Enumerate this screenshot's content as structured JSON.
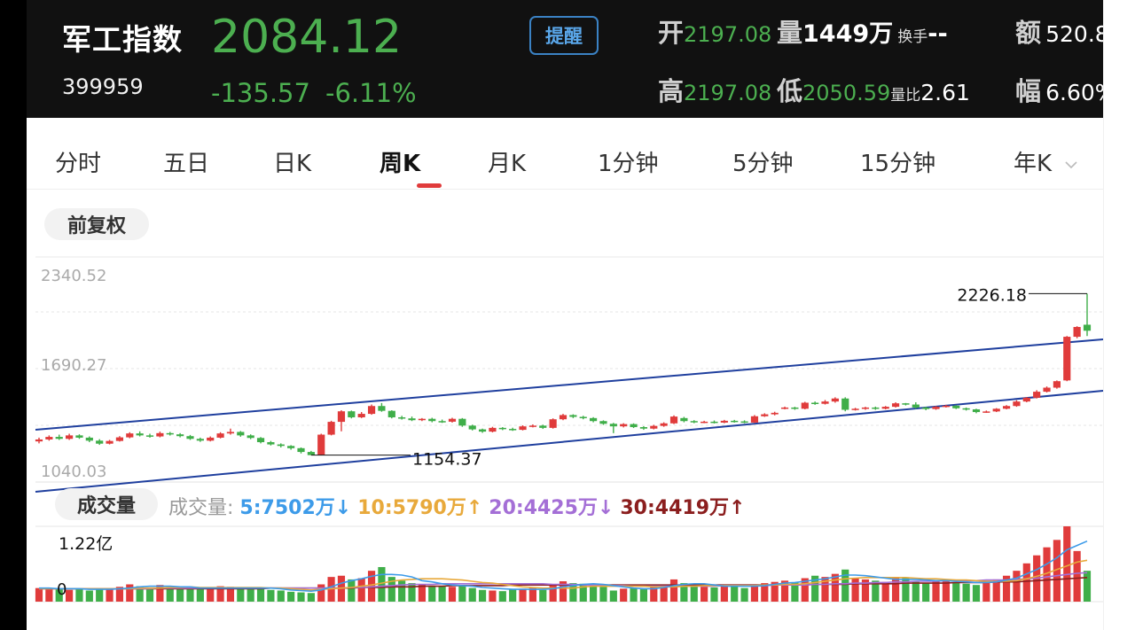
{
  "header": {
    "title": "军工指数",
    "code": "399959",
    "price": "2084.12",
    "change": "-135.57",
    "change_pct": "-6.11%",
    "alert_label": "提醒",
    "open_label": "开",
    "open": "2197.08",
    "volume_label": "量",
    "volume": "1449万",
    "turnover_label": "换手",
    "turnover": "--",
    "amount_label": "额",
    "amount": "520.8",
    "high_label": "高",
    "high": "2197.08",
    "low_label": "低",
    "low": "2050.59",
    "volratio_label": "量比",
    "volratio": "2.61",
    "amplitude_label": "幅",
    "amplitude": "6.60%"
  },
  "tabs": [
    {
      "label": "分时"
    },
    {
      "label": "五日"
    },
    {
      "label": "日K"
    },
    {
      "label": "周K",
      "active": true
    },
    {
      "label": "月K"
    },
    {
      "label": "1分钟"
    },
    {
      "label": "5分钟"
    },
    {
      "label": "15分钟"
    },
    {
      "label": "年K"
    }
  ],
  "adjust_label": "前复权",
  "volume_section": {
    "label": "成交量",
    "legend_prefix": "成交量:",
    "ma5": "5:7502万↓",
    "ma10": "10:5790万↑",
    "ma20": "20:4425万↓",
    "ma30": "30:4419万↑",
    "max_label": "1.22亿",
    "zero_label": "0"
  },
  "colors": {
    "up": "#e03b3b",
    "down": "#3fae49",
    "trend": "#1f3f9e",
    "ma5": "#3d9be9",
    "ma10": "#e8a93b",
    "ma20": "#a46fd6",
    "ma30": "#8b1e1e"
  },
  "chart_data": {
    "type": "candlestick",
    "y_axis_labels": [
      "2340.52",
      "1690.27",
      "1040.03"
    ],
    "ylim": [
      1040.03,
      2340.52
    ],
    "max_label": "2226.18",
    "min_label": "1154.37",
    "candles": [
      [
        1245,
        1258,
        1232,
        1270
      ],
      [
        1258,
        1275,
        1250,
        1285
      ],
      [
        1275,
        1262,
        1255,
        1290
      ],
      [
        1262,
        1285,
        1255,
        1296
      ],
      [
        1285,
        1270,
        1262,
        1292
      ],
      [
        1270,
        1250,
        1240,
        1278
      ],
      [
        1250,
        1230,
        1222,
        1260
      ],
      [
        1230,
        1248,
        1225,
        1255
      ],
      [
        1248,
        1272,
        1244,
        1280
      ],
      [
        1272,
        1298,
        1266,
        1306
      ],
      [
        1298,
        1285,
        1278,
        1312
      ],
      [
        1285,
        1278,
        1270,
        1296
      ],
      [
        1278,
        1300,
        1272,
        1310
      ],
      [
        1300,
        1292,
        1284,
        1308
      ],
      [
        1292,
        1280,
        1272,
        1300
      ],
      [
        1280,
        1262,
        1255,
        1288
      ],
      [
        1262,
        1250,
        1242,
        1270
      ],
      [
        1250,
        1270,
        1245,
        1278
      ],
      [
        1270,
        1298,
        1265,
        1306
      ],
      [
        1298,
        1308,
        1290,
        1330
      ],
      [
        1308,
        1285,
        1276,
        1314
      ],
      [
        1285,
        1268,
        1260,
        1292
      ],
      [
        1268,
        1240,
        1232,
        1274
      ],
      [
        1240,
        1225,
        1218,
        1248
      ],
      [
        1225,
        1215,
        1205,
        1232
      ],
      [
        1215,
        1200,
        1190,
        1220
      ],
      [
        1200,
        1175,
        1165,
        1205
      ],
      [
        1175,
        1154,
        1154,
        1182
      ],
      [
        1156,
        1290,
        1154,
        1296
      ],
      [
        1290,
        1375,
        1285,
        1382
      ],
      [
        1375,
        1445,
        1312,
        1452
      ],
      [
        1445,
        1405,
        1398,
        1450
      ],
      [
        1405,
        1428,
        1400,
        1440
      ],
      [
        1428,
        1480,
        1422,
        1490
      ],
      [
        1480,
        1448,
        1442,
        1500
      ],
      [
        1448,
        1405,
        1398,
        1452
      ],
      [
        1405,
        1398,
        1390,
        1415
      ],
      [
        1398,
        1386,
        1380,
        1410
      ],
      [
        1386,
        1395,
        1380,
        1400
      ],
      [
        1395,
        1380,
        1372,
        1402
      ],
      [
        1380,
        1376,
        1368,
        1390
      ],
      [
        1376,
        1395,
        1370,
        1402
      ],
      [
        1395,
        1350,
        1342,
        1400
      ],
      [
        1350,
        1325,
        1318,
        1356
      ],
      [
        1325,
        1310,
        1302,
        1330
      ],
      [
        1310,
        1335,
        1305,
        1342
      ],
      [
        1335,
        1328,
        1320,
        1340
      ],
      [
        1328,
        1322,
        1315,
        1336
      ],
      [
        1322,
        1345,
        1318,
        1352
      ],
      [
        1345,
        1350,
        1338,
        1358
      ],
      [
        1350,
        1335,
        1328,
        1356
      ],
      [
        1335,
        1392,
        1330,
        1398
      ],
      [
        1392,
        1420,
        1386,
        1428
      ],
      [
        1420,
        1408,
        1400,
        1425
      ],
      [
        1408,
        1400,
        1392,
        1415
      ],
      [
        1400,
        1380,
        1372,
        1406
      ],
      [
        1380,
        1362,
        1355,
        1385
      ],
      [
        1362,
        1345,
        1300,
        1368
      ],
      [
        1345,
        1360,
        1338,
        1366
      ],
      [
        1360,
        1340,
        1334,
        1365
      ],
      [
        1340,
        1330,
        1322,
        1346
      ],
      [
        1330,
        1348,
        1325,
        1355
      ],
      [
        1348,
        1365,
        1342,
        1372
      ],
      [
        1365,
        1410,
        1360,
        1418
      ],
      [
        1400,
        1380,
        1372,
        1408
      ],
      [
        1380,
        1372,
        1366,
        1386
      ],
      [
        1372,
        1376,
        1366,
        1382
      ],
      [
        1376,
        1370,
        1364,
        1384
      ],
      [
        1370,
        1382,
        1366,
        1388
      ],
      [
        1382,
        1378,
        1370,
        1388
      ],
      [
        1378,
        1372,
        1366,
        1385
      ],
      [
        1370,
        1412,
        1368,
        1420
      ],
      [
        1412,
        1425,
        1408,
        1432
      ],
      [
        1425,
        1435,
        1418,
        1442
      ],
      [
        1465,
        1470,
        1458,
        1476
      ],
      [
        1470,
        1462,
        1455,
        1475
      ],
      [
        1462,
        1502,
        1458,
        1508
      ],
      [
        1502,
        1495,
        1488,
        1510
      ],
      [
        1495,
        1510,
        1490,
        1520
      ],
      [
        1510,
        1530,
        1502,
        1538
      ],
      [
        1530,
        1455,
        1445,
        1538
      ],
      [
        1455,
        1462,
        1450,
        1468
      ],
      [
        1462,
        1470,
        1455,
        1475
      ],
      [
        1470,
        1462,
        1455,
        1476
      ],
      [
        1462,
        1475,
        1458,
        1480
      ],
      [
        1475,
        1498,
        1470,
        1505
      ],
      [
        1498,
        1490,
        1484,
        1500
      ],
      [
        1490,
        1470,
        1462,
        1505
      ],
      [
        1470,
        1460,
        1452,
        1476
      ],
      [
        1460,
        1475,
        1455,
        1480
      ],
      [
        1475,
        1482,
        1470,
        1488
      ],
      [
        1482,
        1465,
        1460,
        1486
      ],
      [
        1465,
        1458,
        1450,
        1470
      ],
      [
        1458,
        1440,
        1432,
        1462
      ],
      [
        1440,
        1444,
        1435,
        1450
      ],
      [
        1444,
        1462,
        1440,
        1466
      ],
      [
        1462,
        1480,
        1458,
        1486
      ],
      [
        1480,
        1510,
        1475,
        1518
      ],
      [
        1510,
        1535,
        1505,
        1540
      ],
      [
        1535,
        1575,
        1530,
        1585
      ],
      [
        1575,
        1602,
        1570,
        1610
      ],
      [
        1602,
        1645,
        1595,
        1650
      ],
      [
        1650,
        1940,
        1645,
        1945
      ],
      [
        1940,
        2005,
        1930,
        2010
      ],
      [
        2020,
        1980,
        1945,
        2226
      ]
    ],
    "volumes": [
      22,
      21,
      20,
      19,
      21,
      18,
      22,
      20,
      24,
      28,
      25,
      22,
      27,
      24,
      23,
      21,
      20,
      22,
      25,
      24,
      23,
      20,
      21,
      19,
      18,
      16,
      15,
      14,
      28,
      40,
      42,
      36,
      38,
      50,
      56,
      40,
      34,
      30,
      28,
      26,
      25,
      24,
      27,
      22,
      19,
      18,
      17,
      20,
      21,
      22,
      19,
      26,
      33,
      30,
      29,
      26,
      24,
      18,
      21,
      22,
      20,
      24,
      28,
      36,
      30,
      26,
      24,
      23,
      27,
      25,
      22,
      28,
      30,
      32,
      34,
      31,
      38,
      42,
      40,
      45,
      52,
      38,
      36,
      34,
      32,
      40,
      38,
      33,
      30,
      34,
      36,
      31,
      29,
      27,
      33,
      36,
      42,
      50,
      62,
      75,
      88,
      100,
      122,
      82,
      50
    ],
    "ma5": [
      22,
      22,
      21,
      21,
      21,
      20,
      20,
      20,
      21,
      22,
      24,
      25,
      25,
      25,
      24,
      24,
      22,
      22,
      22,
      22,
      22,
      22,
      22,
      22,
      21,
      19,
      18,
      17,
      19,
      24,
      30,
      34,
      37,
      41,
      44,
      44,
      43,
      40,
      34,
      32,
      29,
      27,
      26,
      25,
      23,
      22,
      21,
      20,
      20,
      20,
      20,
      21,
      24,
      26,
      28,
      29,
      28,
      26,
      24,
      22,
      21,
      21,
      23,
      26,
      28,
      29,
      29,
      27,
      25,
      25,
      25,
      25,
      26,
      28,
      30,
      31,
      33,
      35,
      37,
      40,
      43,
      43,
      42,
      40,
      38,
      36,
      36,
      36,
      35,
      34,
      34,
      33,
      32,
      31,
      31,
      32,
      35,
      38,
      45,
      52,
      61,
      71,
      84,
      91,
      98
    ],
    "ma10": [
      21,
      21,
      21,
      21,
      21,
      21,
      21,
      21,
      21,
      21,
      22,
      22,
      22,
      23,
      23,
      24,
      23,
      23,
      23,
      23,
      23,
      23,
      23,
      22,
      22,
      21,
      20,
      19,
      20,
      21,
      22,
      23,
      25,
      27,
      30,
      33,
      35,
      36,
      37,
      37,
      37,
      36,
      35,
      33,
      31,
      30,
      28,
      26,
      24,
      23,
      22,
      22,
      22,
      22,
      24,
      25,
      25,
      25,
      25,
      25,
      25,
      24,
      24,
      24,
      25,
      25,
      26,
      26,
      26,
      26,
      26,
      26,
      27,
      27,
      28,
      28,
      29,
      31,
      33,
      35,
      37,
      38,
      39,
      39,
      39,
      39,
      39,
      38,
      37,
      37,
      36,
      35,
      35,
      34,
      33,
      33,
      33,
      34,
      37,
      41,
      46,
      52,
      58,
      64,
      67
    ],
    "ma20": [
      21,
      21,
      21,
      21,
      21,
      21,
      21,
      21,
      21,
      21,
      21,
      21,
      22,
      22,
      22,
      22,
      22,
      22,
      22,
      22,
      22,
      22,
      22,
      22,
      22,
      22,
      22,
      22,
      22,
      22,
      22,
      23,
      23,
      24,
      25,
      26,
      27,
      28,
      28,
      28,
      29,
      29,
      29,
      29,
      29,
      29,
      29,
      29,
      29,
      29,
      29,
      28,
      28,
      28,
      27,
      27,
      27,
      26,
      26,
      25,
      25,
      25,
      25,
      25,
      25,
      25,
      25,
      25,
      26,
      26,
      26,
      26,
      26,
      27,
      27,
      27,
      27,
      28,
      28,
      29,
      29,
      30,
      30,
      31,
      31,
      32,
      32,
      33,
      33,
      33,
      34,
      34,
      34,
      34,
      35,
      35,
      35,
      36,
      37,
      38,
      40,
      42,
      44,
      46,
      47
    ],
    "ma30": [
      21,
      21,
      21,
      21,
      21,
      21,
      21,
      21,
      21,
      21,
      21,
      21,
      21,
      21,
      21,
      21,
      21,
      21,
      21,
      21,
      21,
      21,
      21,
      22,
      22,
      22,
      22,
      22,
      22,
      22,
      22,
      22,
      23,
      23,
      23,
      24,
      24,
      24,
      25,
      25,
      25,
      26,
      26,
      26,
      26,
      26,
      26,
      27,
      27,
      27,
      27,
      27,
      27,
      27,
      27,
      27,
      27,
      27,
      27,
      27,
      27,
      27,
      27,
      27,
      27,
      27,
      27,
      27,
      27,
      27,
      27,
      27,
      27,
      27,
      27,
      27,
      27,
      28,
      28,
      28,
      28,
      29,
      29,
      29,
      29,
      29,
      30,
      30,
      30,
      30,
      30,
      31,
      31,
      31,
      31,
      32,
      32,
      32,
      33,
      34,
      35,
      36,
      37,
      38,
      39
    ]
  }
}
